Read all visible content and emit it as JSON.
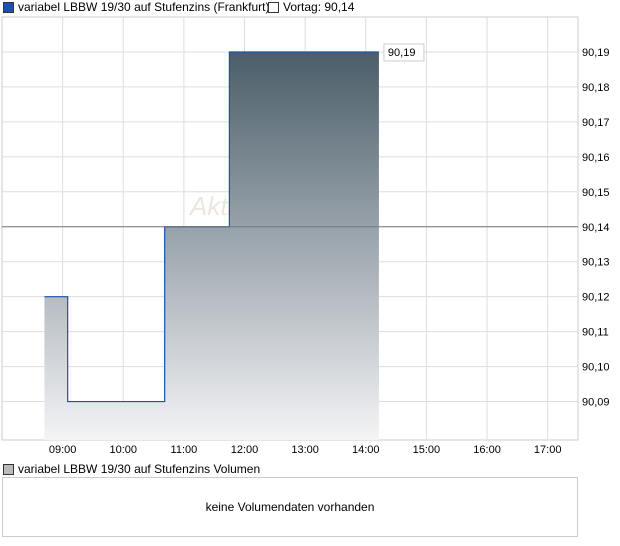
{
  "legend": {
    "series_label": "variabel LBBW 19/30 auf Stufenzins (Frankfurt)",
    "series_color": "#1a4fb5",
    "prev_label": "Vortag: 90,14"
  },
  "watermark": "AktienCheck",
  "chart_data": {
    "type": "area",
    "x_ticks": [
      "09:00",
      "10:00",
      "11:00",
      "12:00",
      "13:00",
      "14:00",
      "15:00",
      "16:00",
      "17:00"
    ],
    "y_ticks": [
      "90,19",
      "90,18",
      "90,17",
      "90,16",
      "90,15",
      "90,14",
      "90,13",
      "90,12",
      "90,11",
      "90,10",
      "90,09"
    ],
    "xlim": [
      "08:00",
      "17:30"
    ],
    "ylim": [
      90.079,
      90.2
    ],
    "grid": true,
    "reference_line": 90.14,
    "last_value_label": "90,19",
    "points": [
      [
        "08:42",
        90.12
      ],
      [
        "09:05",
        90.09
      ],
      [
        "10:41",
        90.14
      ],
      [
        "11:45",
        90.19
      ],
      [
        "14:13",
        90.19
      ]
    ],
    "line_color": "#1a4fb5",
    "fill_colors": [
      "#4a5d69",
      "#f4f4f6"
    ]
  },
  "volume": {
    "legend_label": "variabel LBBW 19/30 auf Stufenzins Volumen",
    "message": "keine Volumendaten vorhanden"
  }
}
